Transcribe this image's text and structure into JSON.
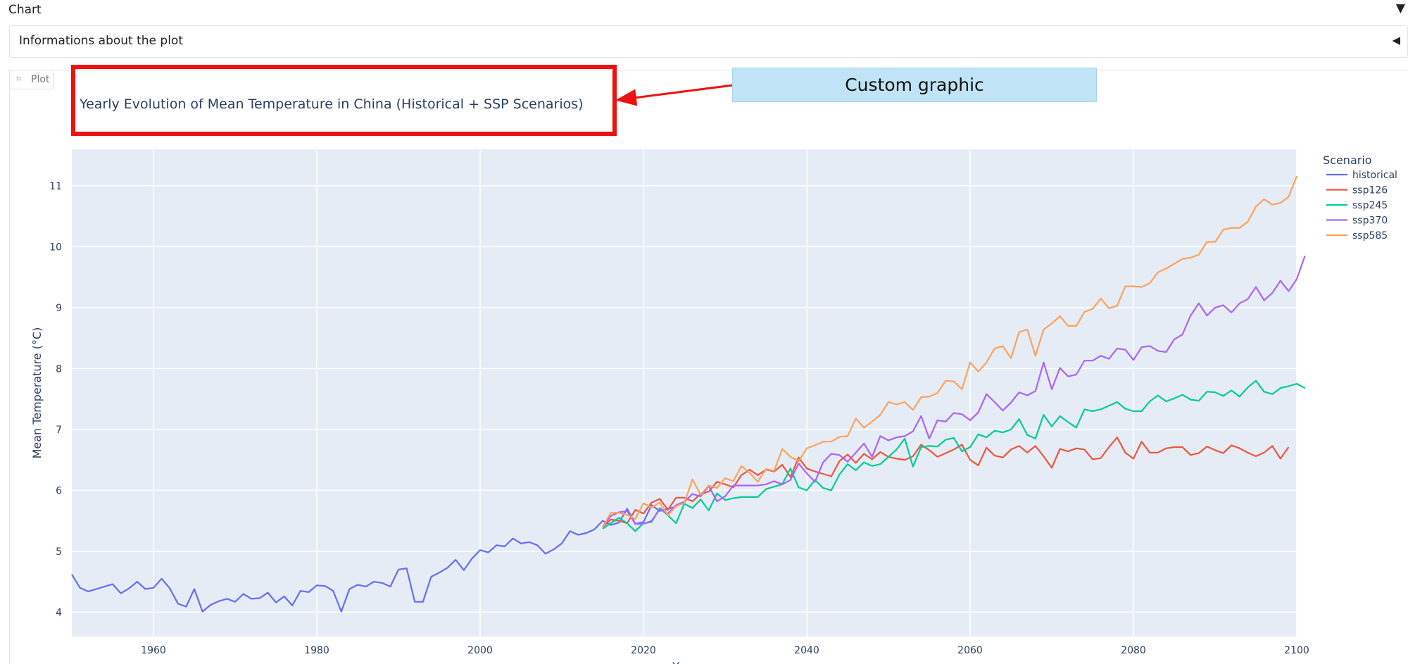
{
  "header": {
    "section_label": "Chart",
    "section_caret": "▼"
  },
  "info": {
    "label": "Informations about the plot",
    "caret": "◀"
  },
  "tab": {
    "label": "Plot",
    "icon": "chart-icon"
  },
  "annotation": {
    "callout_text": "Custom graphic",
    "box_color": "#ee1111",
    "callout_color": "#c0e4f5"
  },
  "chart_data": {
    "type": "line",
    "title": "Yearly Evolution of Mean Temperature in China (Historical + SSP Scenarios)",
    "xlabel": "Year",
    "ylabel": "Mean Temperature (°C)",
    "xlim": [
      1950,
      2100
    ],
    "ylim": [
      3.6,
      11.6
    ],
    "xticks": [
      1960,
      1980,
      2000,
      2020,
      2040,
      2060,
      2080,
      2100
    ],
    "yticks": [
      4,
      5,
      6,
      7,
      8,
      9,
      10,
      11
    ],
    "grid": true,
    "plot_bg": "#e5ecf6",
    "legend": {
      "title": "Scenario",
      "position": "right"
    },
    "series": [
      {
        "name": "historical",
        "color": "#636efa",
        "x_start": 1950,
        "values": [
          4.62,
          4.4,
          4.34,
          4.38,
          4.42,
          4.46,
          4.31,
          4.39,
          4.5,
          4.38,
          4.4,
          4.55,
          4.39,
          4.14,
          4.09,
          4.38,
          4.01,
          4.12,
          4.18,
          4.22,
          4.17,
          4.3,
          4.22,
          4.23,
          4.32,
          4.16,
          4.26,
          4.11,
          4.35,
          4.33,
          4.44,
          4.43,
          4.35,
          4.01,
          4.38,
          4.45,
          4.42,
          4.5,
          4.48,
          4.42,
          4.7,
          4.72,
          4.17,
          4.17,
          4.58,
          4.65,
          4.73,
          4.86,
          4.69,
          4.88,
          5.02,
          4.98,
          5.1,
          5.08,
          5.21,
          5.13,
          5.15,
          5.1,
          4.96,
          5.03,
          5.13,
          5.33,
          5.27,
          5.3,
          5.36,
          5.5,
          5.43,
          5.47,
          5.7,
          5.45,
          5.48,
          5.76,
          5.66,
          5.7,
          5.73
        ]
      },
      {
        "name": "ssp126",
        "color": "#ef553b",
        "x_start": 2015,
        "values": [
          5.4,
          5.52,
          5.5,
          5.46,
          5.68,
          5.62,
          5.8,
          5.86,
          5.68,
          5.88,
          5.88,
          5.82,
          5.94,
          5.98,
          6.14,
          6.1,
          6.05,
          6.25,
          6.34,
          6.25,
          6.34,
          6.31,
          6.42,
          6.22,
          6.54,
          6.36,
          6.31,
          6.27,
          6.23,
          6.48,
          6.59,
          6.45,
          6.6,
          6.51,
          6.63,
          6.55,
          6.52,
          6.5,
          6.56,
          6.75,
          6.66,
          6.55,
          6.61,
          6.67,
          6.75,
          6.5,
          6.41,
          6.7,
          6.57,
          6.54,
          6.67,
          6.73,
          6.62,
          6.73,
          6.56,
          6.37,
          6.68,
          6.64,
          6.69,
          6.67,
          6.51,
          6.53,
          6.71,
          6.87,
          6.62,
          6.52,
          6.8,
          6.62,
          6.62,
          6.69,
          6.71,
          6.71,
          6.58,
          6.61,
          6.72,
          6.66,
          6.61,
          6.74,
          6.69,
          6.62,
          6.56,
          6.62,
          6.73,
          6.52,
          6.71
        ]
      },
      {
        "name": "ssp245",
        "color": "#00cc96",
        "x_start": 2015,
        "values": [
          5.37,
          5.46,
          5.55,
          5.46,
          5.33,
          5.46,
          5.48,
          5.71,
          5.59,
          5.46,
          5.78,
          5.71,
          5.85,
          5.67,
          5.95,
          5.84,
          5.87,
          5.89,
          5.89,
          5.89,
          6.02,
          6.06,
          6.1,
          6.36,
          6.05,
          6.0,
          6.17,
          6.04,
          6.0,
          6.26,
          6.43,
          6.33,
          6.46,
          6.4,
          6.43,
          6.55,
          6.67,
          6.85,
          6.39,
          6.71,
          6.73,
          6.72,
          6.83,
          6.86,
          6.64,
          6.71,
          6.92,
          6.87,
          6.98,
          6.95,
          7.0,
          7.17,
          6.91,
          6.85,
          7.24,
          7.05,
          7.22,
          7.12,
          7.03,
          7.33,
          7.3,
          7.33,
          7.39,
          7.45,
          7.34,
          7.3,
          7.3,
          7.46,
          7.56,
          7.46,
          7.51,
          7.57,
          7.49,
          7.47,
          7.62,
          7.61,
          7.55,
          7.64,
          7.54,
          7.69,
          7.8,
          7.62,
          7.58,
          7.68,
          7.71,
          7.75,
          7.68
        ]
      },
      {
        "name": "ssp370",
        "color": "#ab63fa",
        "x_start": 2015,
        "values": [
          5.4,
          5.58,
          5.64,
          5.66,
          5.45,
          5.45,
          5.5,
          5.69,
          5.62,
          5.76,
          5.81,
          5.94,
          5.9,
          6.07,
          5.82,
          5.9,
          6.08,
          6.08,
          6.08,
          6.08,
          6.1,
          6.15,
          6.1,
          6.17,
          6.44,
          6.28,
          6.14,
          6.46,
          6.6,
          6.58,
          6.47,
          6.62,
          6.77,
          6.55,
          6.89,
          6.82,
          6.87,
          6.89,
          6.97,
          7.22,
          6.85,
          7.15,
          7.13,
          7.27,
          7.25,
          7.15,
          7.28,
          7.58,
          7.45,
          7.31,
          7.44,
          7.61,
          7.56,
          7.63,
          8.1,
          7.66,
          8.01,
          7.87,
          7.9,
          8.13,
          8.13,
          8.21,
          8.16,
          8.33,
          8.31,
          8.14,
          8.35,
          8.37,
          8.29,
          8.27,
          8.48,
          8.56,
          8.87,
          9.07,
          8.87,
          9.0,
          9.04,
          8.92,
          9.07,
          9.14,
          9.34,
          9.12,
          9.24,
          9.44,
          9.27,
          9.47,
          9.85
        ]
      },
      {
        "name": "ssp585",
        "color": "#ffa15a",
        "x_start": 2015,
        "values": [
          5.4,
          5.63,
          5.63,
          5.6,
          5.53,
          5.79,
          5.72,
          5.8,
          5.59,
          5.74,
          5.79,
          6.18,
          5.93,
          6.08,
          6.04,
          6.2,
          6.15,
          6.4,
          6.29,
          6.14,
          6.35,
          6.32,
          6.68,
          6.55,
          6.48,
          6.69,
          6.74,
          6.8,
          6.8,
          6.88,
          6.89,
          7.18,
          7.03,
          7.13,
          7.24,
          7.45,
          7.41,
          7.45,
          7.32,
          7.53,
          7.54,
          7.6,
          7.8,
          7.79,
          7.66,
          8.1,
          7.95,
          8.1,
          8.33,
          8.37,
          8.17,
          8.6,
          8.64,
          8.21,
          8.64,
          8.74,
          8.86,
          8.7,
          8.7,
          8.93,
          8.98,
          9.15,
          8.99,
          9.03,
          9.35,
          9.35,
          9.34,
          9.4,
          9.58,
          9.64,
          9.72,
          9.8,
          9.82,
          9.87,
          10.08,
          10.08,
          10.28,
          10.31,
          10.31,
          10.41,
          10.66,
          10.78,
          10.69,
          10.72,
          10.82,
          11.16
        ]
      }
    ]
  }
}
